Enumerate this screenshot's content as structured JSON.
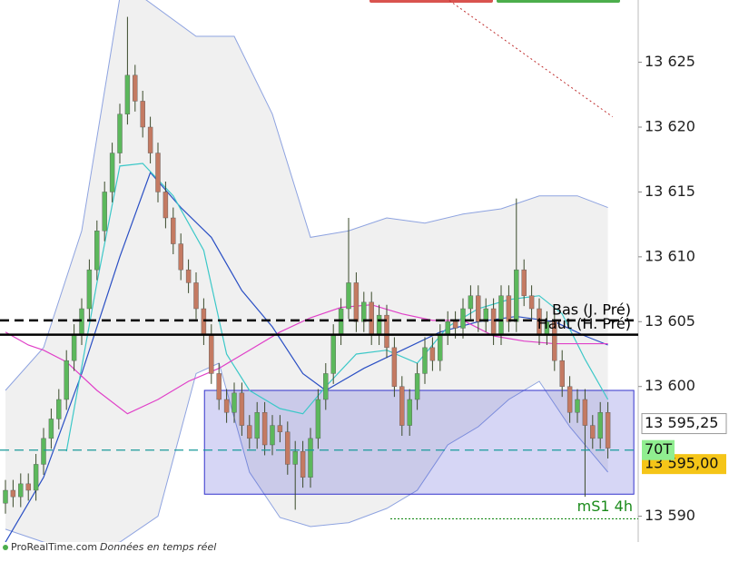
{
  "chart_data": {
    "type": "candlestick",
    "open": [
      13591,
      13592,
      13591.5,
      13592.5,
      13592,
      13594,
      13596,
      13597.5,
      13599,
      13602,
      13604,
      13606,
      13609,
      13612,
      13615,
      13618,
      13621,
      13624,
      13622,
      13620,
      13618,
      13615,
      13613,
      13611,
      13609,
      13608,
      13606,
      13604,
      13601,
      13599,
      13598,
      13599.5,
      13597,
      13596,
      13598,
      13595.5,
      13597,
      13596.5,
      13594,
      13595,
      13593,
      13596,
      13599,
      13601,
      13604,
      13606,
      13608,
      13605,
      13606.5,
      13604,
      13605.5,
      13603,
      13600,
      13597,
      13599,
      13601,
      13603,
      13602,
      13604,
      13605,
      13604.5,
      13606,
      13607,
      13605,
      13606,
      13604,
      13607,
      13605,
      13609,
      13607,
      13606,
      13604,
      13605,
      13602,
      13600,
      13598,
      13599,
      13597,
      13596,
      13598
    ],
    "high": [
      13592.8,
      13592.8,
      13593.3,
      13593.3,
      13594.8,
      13596.8,
      13598.3,
      13599.8,
      13602.8,
      13604.8,
      13606.8,
      13609.8,
      13612.8,
      13615.8,
      13618.8,
      13621.8,
      13628.5,
      13624.8,
      13622.8,
      13620.8,
      13618.8,
      13615.8,
      13613.8,
      13611.8,
      13609.8,
      13608.8,
      13606.8,
      13604.8,
      13601.8,
      13599.8,
      13600.3,
      13600.3,
      13597.8,
      13598.8,
      13598.8,
      13597.8,
      13597.8,
      13597.3,
      13595.8,
      13595.8,
      13596.8,
      13599.8,
      13601.8,
      13604.8,
      13606.8,
      13613,
      13608.8,
      13607.3,
      13607.3,
      13606.3,
      13606.3,
      13603.8,
      13600.8,
      13599.8,
      13601.8,
      13603.8,
      13603.8,
      13604.8,
      13605.8,
      13605.8,
      13606.8,
      13607.8,
      13607.8,
      13606.8,
      13606.8,
      13607.8,
      13607.8,
      13614.5,
      13609.8,
      13607.8,
      13606.8,
      13605.8,
      13605.8,
      13602.8,
      13600.8,
      13599.8,
      13599.8,
      13597.8,
      13598.8,
      13598.8
    ],
    "low": [
      13590.2,
      13590.7,
      13590.7,
      13591.2,
      13591.2,
      13593.2,
      13595.2,
      13596.7,
      13598.2,
      13601.2,
      13603.2,
      13605.2,
      13608.2,
      13611.2,
      13614.2,
      13617.2,
      13620.2,
      13621.2,
      13619.2,
      13617.2,
      13614.2,
      13612.2,
      13610.2,
      13608.2,
      13607.2,
      13605.2,
      13603.2,
      13600.2,
      13598.2,
      13597.2,
      13597.2,
      13596.2,
      13595.2,
      13595.2,
      13594.7,
      13594.7,
      13595.7,
      13593.2,
      13590.5,
      13592.2,
      13592.2,
      13595.2,
      13598.2,
      13600.2,
      13603.2,
      13605.2,
      13604.2,
      13604.2,
      13603.2,
      13603.2,
      13602.2,
      13599.2,
      13596.2,
      13596.2,
      13598.2,
      13600.2,
      13601.2,
      13601.2,
      13603.2,
      13603.7,
      13603.7,
      13605.2,
      13604.2,
      13604.2,
      13603.2,
      13603.2,
      13604.2,
      13604.2,
      13606.2,
      13605.2,
      13603.2,
      13603.2,
      13601.2,
      13599.2,
      13597.2,
      13597.2,
      13591.5,
      13595.2,
      13595.2,
      13594.45
    ],
    "close": [
      13592,
      13591.5,
      13592.5,
      13592,
      13594,
      13596,
      13597.5,
      13599,
      13602,
      13604,
      13606,
      13609,
      13612,
      13615,
      13618,
      13621,
      13624,
      13622,
      13620,
      13618,
      13615,
      13613,
      13611,
      13609,
      13608,
      13606,
      13604,
      13601,
      13599,
      13598,
      13599.5,
      13597,
      13596,
      13598,
      13595.5,
      13597,
      13596.5,
      13594,
      13595,
      13593,
      13596,
      13599,
      13601,
      13604,
      13606,
      13608,
      13605,
      13606.5,
      13604,
      13605.5,
      13603,
      13600,
      13597,
      13599,
      13601,
      13603,
      13602,
      13604,
      13605,
      13604.5,
      13606,
      13607,
      13605,
      13606,
      13604,
      13607,
      13605,
      13609,
      13607,
      13606,
      13604,
      13605,
      13602,
      13600,
      13598,
      13599,
      13597,
      13596,
      13598,
      13595.25
    ],
    "up_color": "#5cb85c",
    "down_color": "#c47a62",
    "band": {
      "color": "#8ea3e0",
      "fill": "#f0f0f0",
      "upper": {
        "x": [
          0,
          5,
          10,
          15,
          18,
          25,
          30,
          35,
          40,
          45,
          50,
          55,
          60,
          65,
          70,
          75,
          79
        ],
        "values": [
          13599.7,
          13603,
          13612,
          13630,
          13630,
          13627,
          13627,
          13621,
          13611.5,
          13612,
          13613,
          13612.6,
          13613.3,
          13613.7,
          13614.7,
          13614.7,
          13613.8
        ]
      },
      "lower": {
        "x": [
          0,
          5,
          10,
          15,
          20,
          25,
          28,
          32,
          36,
          40,
          45,
          50,
          54,
          58,
          62,
          66,
          70,
          74,
          79
        ],
        "values": [
          13589,
          13588,
          13587.5,
          13588,
          13590,
          13601,
          13601.8,
          13593.4,
          13589.9,
          13589.2,
          13589.5,
          13590.6,
          13592,
          13595.5,
          13596.9,
          13599,
          13600.4,
          13596.9,
          13593.4
        ]
      }
    },
    "lines": [
      {
        "color": "#2a4fc4",
        "x": [
          0,
          5,
          10,
          15,
          19,
          23,
          27,
          31,
          35,
          39,
          42,
          47,
          52,
          57,
          62,
          67,
          72,
          76,
          79
        ],
        "values": [
          13588,
          13593,
          13601,
          13610,
          13616.5,
          13613.8,
          13611.5,
          13607.4,
          13604.6,
          13601,
          13599.7,
          13601.4,
          13602.8,
          13604.2,
          13605,
          13605.4,
          13605,
          13603.9,
          13603.2
        ]
      },
      {
        "color": "#3cc8c8",
        "x": [
          8,
          12,
          15,
          18,
          22,
          26,
          29,
          32,
          36,
          39,
          42,
          46,
          50,
          54,
          58,
          62,
          66,
          70,
          73,
          76,
          79
        ],
        "values": [
          13595,
          13608,
          13617,
          13617.2,
          13614.7,
          13610.5,
          13602.5,
          13599.7,
          13598.3,
          13597.9,
          13600,
          13602.5,
          13602.8,
          13601.8,
          13604.6,
          13606,
          13606.7,
          13607,
          13605.6,
          13602.1,
          13599
        ]
      },
      {
        "color": "#e040c8",
        "x": [
          0,
          3,
          5,
          8,
          12,
          16,
          20,
          24,
          28,
          32,
          36,
          40,
          44,
          48,
          52,
          56,
          60,
          64,
          68,
          72,
          76,
          79
        ],
        "values": [
          13604.2,
          13603.2,
          13602.8,
          13601.9,
          13599.7,
          13597.9,
          13599,
          13600.4,
          13601.4,
          13602.8,
          13604.2,
          13605.3,
          13606.1,
          13606.3,
          13605.6,
          13605.1,
          13605.1,
          13603.9,
          13603.5,
          13603.3,
          13603.3,
          13603.3
        ]
      }
    ],
    "zone": {
      "low": 13591.7,
      "high": 13599.7,
      "x": [
        26.1,
        82.4
      ],
      "color": "#3333cc"
    },
    "trend": {
      "x": [
        58.2,
        79.6
      ],
      "values": [
        13629.76,
        13620.8
      ],
      "color": "#c03030"
    },
    "levels": [
      {
        "label": "Bas (J. Pré)",
        "value": 13605.1,
        "style": "dashed",
        "color": "#000000"
      },
      {
        "label": "Haut (H. Pré)",
        "value": 13604,
        "style": "solid",
        "color": "#000000"
      },
      {
        "value": 13595.1,
        "style": "dashed",
        "color": "#1a9a9a"
      },
      {
        "label": "mS1 4h",
        "value": 13589.8,
        "style": "dotted",
        "color": "#1a8a1a"
      }
    ],
    "price_labels": [
      {
        "label": "13 595,25",
        "value": 13595.25,
        "fill": "#ffffff"
      },
      {
        "label": "13 595,00",
        "value": 13595,
        "fill": "#f5c518"
      },
      {
        "label": "70T",
        "value": 13595.1,
        "fill": "#90ee90"
      }
    ],
    "ylim": [
      13587.8,
      13629.8
    ],
    "yticks": [
      {
        "value": 13590,
        "label": "13 590"
      },
      {
        "value": 13600,
        "label": "13 600"
      },
      {
        "value": 13605,
        "label": "13 605"
      },
      {
        "value": 13610,
        "label": "13 610"
      },
      {
        "value": 13615,
        "label": "13 615"
      },
      {
        "value": 13620,
        "label": "13 620"
      },
      {
        "value": 13625,
        "label": "13 625"
      }
    ],
    "footer": {
      "site": "ProRealTime.com",
      "note": "Données en temps réel"
    }
  }
}
